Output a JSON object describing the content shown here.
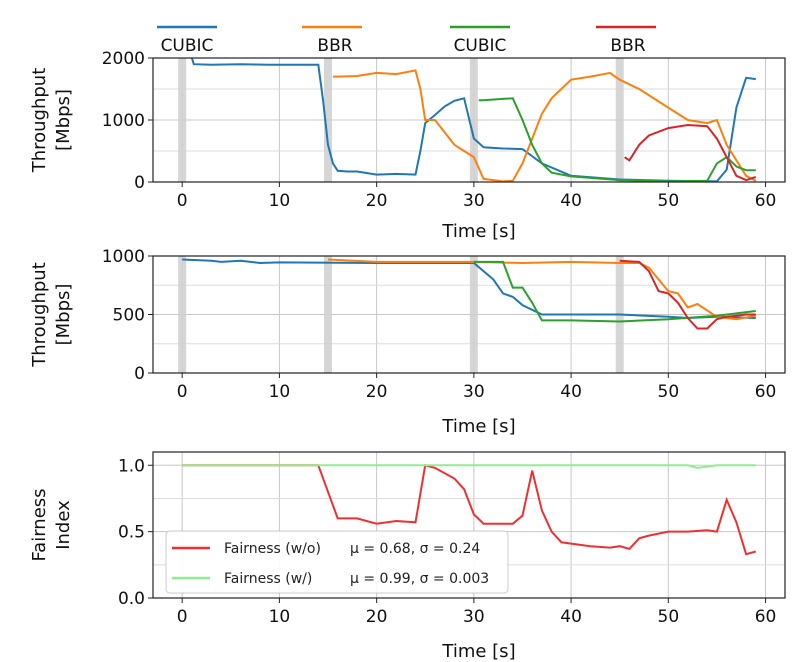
{
  "chart_data": [
    {
      "type": "line",
      "xlabel": "Time [s]",
      "ylabel": "Throughput\n[Mbps]",
      "xlim": [
        -3,
        62
      ],
      "ylim": [
        0,
        2000
      ],
      "xticks": [
        0,
        10,
        20,
        30,
        40,
        50,
        60
      ],
      "yticks": [
        0,
        1000,
        2000
      ],
      "grid": true,
      "shaded_times": [
        0,
        15,
        30,
        45
      ],
      "legend": {
        "placement": "top",
        "entries": [
          "CUBIC",
          "BBR",
          "CUBIC",
          "BBR"
        ]
      },
      "series": [
        {
          "name": "CUBIC",
          "color": "#1f77b4",
          "x": [
            1,
            1.2,
            3,
            6,
            9,
            12,
            14,
            14.5,
            15,
            15.5,
            16,
            17,
            18,
            20,
            22,
            24,
            24.5,
            25,
            26,
            27,
            28,
            29,
            30,
            31,
            33,
            35,
            37,
            40,
            45,
            50,
            55,
            56,
            57,
            58,
            59
          ],
          "y": [
            2000,
            1900,
            1890,
            1900,
            1890,
            1890,
            1890,
            1300,
            600,
            300,
            180,
            170,
            170,
            120,
            130,
            120,
            500,
            950,
            1080,
            1220,
            1310,
            1350,
            700,
            560,
            540,
            530,
            300,
            100,
            40,
            20,
            10,
            200,
            1200,
            1680,
            1660
          ]
        },
        {
          "name": "BBR",
          "color": "#ff7f0e",
          "x": [
            15.5,
            16,
            18,
            20,
            22,
            24,
            24.5,
            25,
            26,
            27,
            28,
            29,
            30,
            31,
            33,
            34,
            35,
            36,
            37,
            38,
            40,
            42,
            44,
            45,
            47,
            50,
            52,
            54,
            55,
            56,
            57,
            58,
            59
          ],
          "y": [
            1700,
            1700,
            1710,
            1760,
            1740,
            1800,
            1500,
            1000,
            1000,
            800,
            600,
            500,
            400,
            50,
            10,
            20,
            300,
            700,
            1100,
            1350,
            1650,
            1700,
            1760,
            1650,
            1500,
            1200,
            1000,
            950,
            1000,
            600,
            350,
            100,
            20
          ]
        },
        {
          "name": "CUBIC",
          "color": "#2ca02c",
          "x": [
            30.5,
            31,
            33,
            34,
            35,
            36,
            37,
            38,
            40,
            45,
            50,
            54,
            55,
            56,
            57,
            58,
            59
          ],
          "y": [
            1320,
            1320,
            1340,
            1350,
            1000,
            600,
            300,
            150,
            90,
            30,
            10,
            20,
            300,
            400,
            250,
            190,
            190
          ]
        },
        {
          "name": "BBR",
          "color": "#d62728",
          "x": [
            45.5,
            46,
            47,
            48,
            50,
            52,
            54,
            55,
            56,
            57,
            58,
            59
          ],
          "y": [
            400,
            350,
            600,
            750,
            870,
            920,
            900,
            700,
            400,
            100,
            30,
            80
          ]
        }
      ]
    },
    {
      "type": "line",
      "xlabel": "Time [s]",
      "ylabel": "Throughput\n[Mbps]",
      "xlim": [
        -3,
        62
      ],
      "ylim": [
        0,
        1000
      ],
      "xticks": [
        0,
        10,
        20,
        30,
        40,
        50,
        60
      ],
      "yticks": [
        0,
        500,
        1000
      ],
      "grid": true,
      "shaded_times": [
        0,
        15,
        30,
        45
      ],
      "series": [
        {
          "name": "CUBIC",
          "color": "#1f77b4",
          "x": [
            0,
            3,
            4,
            6,
            8,
            10,
            20,
            30,
            32,
            33,
            34,
            35,
            37,
            40,
            45,
            50,
            52,
            55,
            59
          ],
          "y": [
            970,
            960,
            950,
            960,
            940,
            945,
            940,
            940,
            800,
            680,
            650,
            580,
            500,
            500,
            500,
            480,
            470,
            480,
            470
          ]
        },
        {
          "name": "BBR",
          "color": "#ff7f0e",
          "x": [
            15,
            20,
            25,
            30,
            35,
            40,
            45,
            47,
            48,
            49,
            50,
            51,
            52,
            53,
            55,
            57,
            59
          ],
          "y": [
            970,
            950,
            950,
            950,
            940,
            950,
            940,
            940,
            900,
            800,
            700,
            680,
            560,
            590,
            480,
            460,
            490
          ]
        },
        {
          "name": "CUBIC",
          "color": "#2ca02c",
          "x": [
            30,
            33,
            34,
            35,
            36,
            37,
            40,
            45,
            50,
            55,
            59
          ],
          "y": [
            950,
            950,
            730,
            730,
            600,
            450,
            450,
            440,
            460,
            490,
            530
          ]
        },
        {
          "name": "BBR",
          "color": "#d62728",
          "x": [
            45,
            47,
            48,
            49,
            50,
            51,
            52,
            53,
            54,
            55,
            56,
            58,
            59
          ],
          "y": [
            960,
            950,
            870,
            700,
            680,
            600,
            470,
            380,
            380,
            460,
            480,
            500,
            500
          ]
        }
      ]
    },
    {
      "type": "line",
      "xlabel": "Time [s]",
      "ylabel": "Fairness\nIndex",
      "xlim": [
        -3,
        62
      ],
      "ylim": [
        0,
        1.1
      ],
      "xticks": [
        0,
        10,
        20,
        30,
        40,
        50,
        60
      ],
      "yticks": [
        0.0,
        0.5,
        1.0
      ],
      "ytick_labels": [
        "0.0",
        "0.5",
        "1.0"
      ],
      "grid": true,
      "legend": {
        "placement": "lower-left",
        "entries": [
          {
            "label": "Fairness (w/o)",
            "stats": "μ = 0.68, σ = 0.24",
            "color": "#f03030"
          },
          {
            "label": "Fairness (w/)",
            "stats": "μ = 0.99, σ = 0.003",
            "color": "#90ee90"
          }
        ]
      },
      "series": [
        {
          "name": "Fairness (w/o)",
          "color": "#f03030",
          "x": [
            0,
            14,
            15,
            16,
            17,
            18,
            20,
            22,
            24,
            25,
            26,
            28,
            29,
            30,
            31,
            33,
            34,
            35,
            36,
            37,
            38,
            39,
            40,
            42,
            44,
            45,
            46,
            47,
            48,
            50,
            52,
            54,
            55,
            56,
            57,
            58,
            59
          ],
          "y": [
            1.0,
            1.0,
            0.8,
            0.6,
            0.6,
            0.6,
            0.56,
            0.58,
            0.57,
            1.0,
            0.98,
            0.9,
            0.82,
            0.63,
            0.56,
            0.56,
            0.56,
            0.62,
            0.96,
            0.66,
            0.5,
            0.42,
            0.41,
            0.39,
            0.38,
            0.39,
            0.37,
            0.45,
            0.47,
            0.5,
            0.5,
            0.51,
            0.5,
            0.74,
            0.57,
            0.33,
            0.35
          ]
        },
        {
          "name": "Fairness (w/)",
          "color": "#90ee90",
          "x": [
            0,
            10,
            20,
            30,
            40,
            50,
            52,
            53,
            54,
            55,
            56,
            59
          ],
          "y": [
            1.0,
            1.0,
            1.0,
            1.0,
            1.0,
            1.0,
            1.0,
            0.98,
            0.99,
            1.0,
            1.0,
            1.0
          ]
        }
      ]
    }
  ]
}
